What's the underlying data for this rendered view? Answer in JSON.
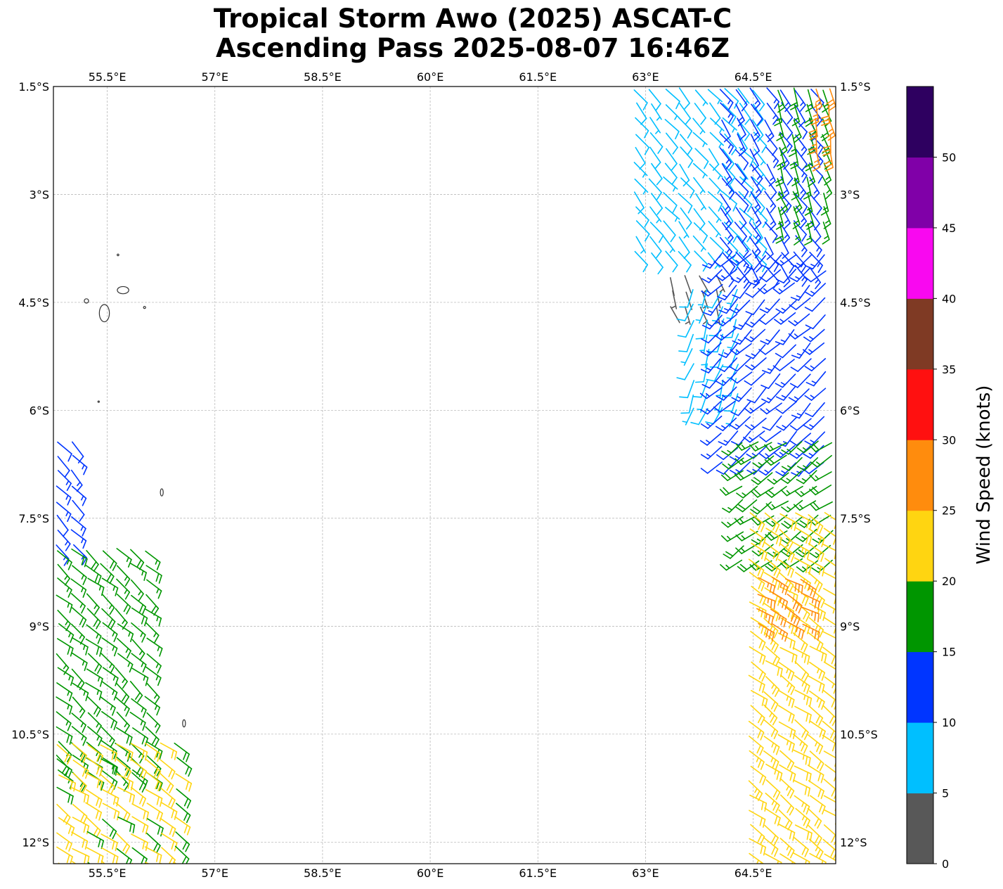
{
  "title": {
    "line1": "Tropical Storm Awo (2025) ASCAT-C",
    "line2": "Ascending Pass 2025-08-07 16:46Z"
  },
  "map": {
    "lon_range": [
      54.75,
      65.65
    ],
    "lat_range": [
      -12.3,
      -1.5
    ],
    "lon_ticks": [
      55.5,
      57,
      58.5,
      60,
      61.5,
      63,
      64.5
    ],
    "lon_tick_labels": [
      "55.5°E",
      "57°E",
      "58.5°E",
      "60°E",
      "61.5°E",
      "63°E",
      "64.5°E"
    ],
    "lat_ticks": [
      -1.5,
      -3,
      -4.5,
      -6,
      -7.5,
      -9,
      -10.5,
      -12
    ],
    "lat_tick_labels": [
      "1.5°S",
      "3°S",
      "4.5°S",
      "6°S",
      "7.5°S",
      "9°S",
      "10.5°S",
      "12°S"
    ],
    "gridlines": true,
    "islands": [
      {
        "name": "",
        "lon": 55.46,
        "lat": -4.65,
        "rx": 0.07,
        "ry": 0.12
      },
      {
        "name": "",
        "lon": 55.21,
        "lat": -4.48,
        "rx": 0.03,
        "ry": 0.03
      },
      {
        "name": "",
        "lon": 55.72,
        "lat": -4.33,
        "rx": 0.08,
        "ry": 0.05
      },
      {
        "name": "",
        "lon": 56.02,
        "lat": -4.57,
        "rx": 0.015,
        "ry": 0.015
      },
      {
        "name": "",
        "lon": 55.65,
        "lat": -3.84,
        "rx": 0.012,
        "ry": 0.012
      },
      {
        "name": "",
        "lon": 55.38,
        "lat": -5.88,
        "rx": 0.01,
        "ry": 0.01
      },
      {
        "name": "",
        "lon": 56.26,
        "lat": -7.14,
        "rx": 0.02,
        "ry": 0.05
      },
      {
        "name": "",
        "lon": 56.57,
        "lat": -10.35,
        "rx": 0.02,
        "ry": 0.05
      }
    ]
  },
  "colorbar": {
    "label": "Wind Speed (knots)",
    "min": 0,
    "max": 55,
    "bins": [
      {
        "from": 0,
        "to": 5,
        "color": "#585858"
      },
      {
        "from": 5,
        "to": 10,
        "color": "#00bfff"
      },
      {
        "from": 10,
        "to": 15,
        "color": "#0035ff"
      },
      {
        "from": 15,
        "to": 20,
        "color": "#009600"
      },
      {
        "from": 20,
        "to": 25,
        "color": "#ffd511"
      },
      {
        "from": 25,
        "to": 30,
        "color": "#ff8c0d"
      },
      {
        "from": 30,
        "to": 35,
        "color": "#ff1010"
      },
      {
        "from": 35,
        "to": 40,
        "color": "#7f3a24"
      },
      {
        "from": 40,
        "to": 45,
        "color": "#f908f0"
      },
      {
        "from": 45,
        "to": 50,
        "color": "#8000a8"
      },
      {
        "from": 50,
        "to": 55,
        "color": "#2e0060"
      }
    ],
    "ticks": [
      0,
      5,
      10,
      15,
      20,
      25,
      30,
      35,
      40,
      45,
      50
    ],
    "tick_labels": [
      "0",
      "5",
      "10",
      "15",
      "20",
      "25",
      "30",
      "35",
      "40",
      "45",
      "50"
    ]
  },
  "wind_regions": [
    {
      "name": "west-swath-upper",
      "lon": [
        54.75,
        55.2
      ],
      "lat": [
        -7.9,
        -6.4
      ],
      "speed": 13,
      "dir": 135
    },
    {
      "name": "west-swath-mid",
      "lon": [
        54.75,
        56.1
      ],
      "lat": [
        -11.2,
        -7.9
      ],
      "speed": 17,
      "dir": 130
    },
    {
      "name": "west-swath-lower",
      "lon": [
        54.75,
        56.6
      ],
      "lat": [
        -12.3,
        -10.6
      ],
      "speed": 21,
      "dir": 125
    },
    {
      "name": "east-swath-calm",
      "lon": [
        63.3,
        64.1
      ],
      "lat": [
        -4.6,
        -4.1
      ],
      "speed": 3,
      "dir": 160
    },
    {
      "name": "east-swath-light-north",
      "lon": [
        62.8,
        64.7
      ],
      "lat": [
        -4.0,
        -1.5
      ],
      "speed": 8,
      "dir": 140
    },
    {
      "name": "east-swath-light-south",
      "lon": [
        63.6,
        64.4
      ],
      "lat": [
        -6.0,
        -4.3
      ],
      "speed": 8,
      "dir": 200
    },
    {
      "name": "east-swath-moderate-north",
      "lon": [
        64.0,
        65.3
      ],
      "lat": [
        -4.2,
        -1.5
      ],
      "speed": 13,
      "dir": 145
    },
    {
      "name": "east-swath-moderate-mid",
      "lon": [
        64.0,
        65.65
      ],
      "lat": [
        -6.8,
        -3.8
      ],
      "speed": 13,
      "dir": 225
    },
    {
      "name": "east-swath-fresh",
      "lon": [
        64.3,
        65.65
      ],
      "lat": [
        -8.2,
        -6.4
      ],
      "speed": 17,
      "dir": 235
    },
    {
      "name": "east-swath-fresh-north",
      "lon": [
        64.8,
        65.5
      ],
      "lat": [
        -3.5,
        -1.5
      ],
      "speed": 17,
      "dir": 160
    },
    {
      "name": "east-swath-strong",
      "lon": [
        64.4,
        65.65
      ],
      "lat": [
        -12.3,
        -7.4
      ],
      "speed": 22,
      "dir": 125
    },
    {
      "name": "east-swath-gale-pocket",
      "lon": [
        64.5,
        65.2
      ],
      "lat": [
        -9.0,
        -8.3
      ],
      "speed": 27,
      "dir": 120
    },
    {
      "name": "east-swath-gale-north",
      "lon": [
        65.3,
        65.65
      ],
      "lat": [
        -2.5,
        -1.5
      ],
      "speed": 27,
      "dir": 170
    }
  ]
}
